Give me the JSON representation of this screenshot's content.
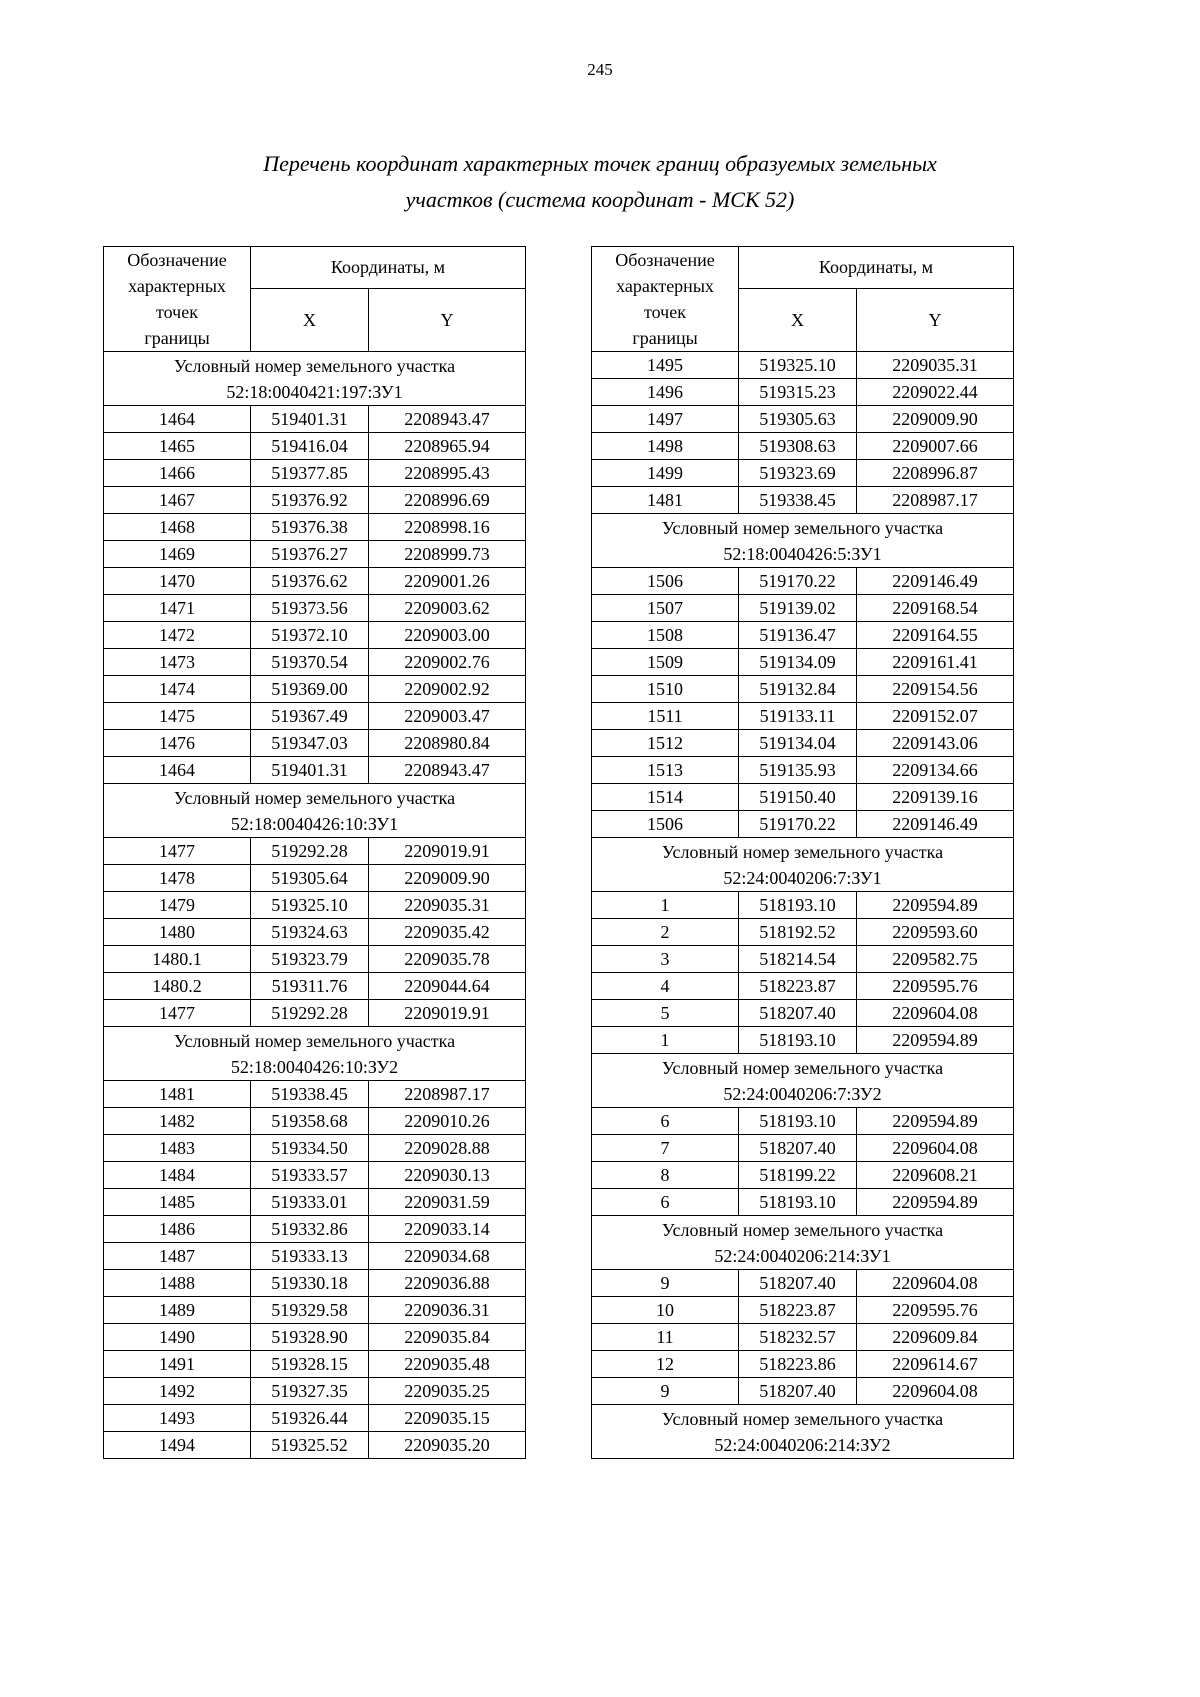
{
  "page": {
    "number": "245",
    "title_line1": "Перечень координат характерных точек границ образуемых земельных",
    "title_line2": "участков (система координат - МСК 52)"
  },
  "table_header": {
    "designation": "Обозначение\nхарактерных\nточек\nграницы",
    "coordinates": "Координаты, м",
    "x": "X",
    "y": "Y"
  },
  "tables": [
    {
      "sections": [
        {
          "header": [
            "Условный номер земельного участка",
            "52:18:0040421:197:ЗУ1"
          ],
          "rows": [
            [
              "1464",
              "519401.31",
              "2208943.47"
            ],
            [
              "1465",
              "519416.04",
              "2208965.94"
            ],
            [
              "1466",
              "519377.85",
              "2208995.43"
            ],
            [
              "1467",
              "519376.92",
              "2208996.69"
            ],
            [
              "1468",
              "519376.38",
              "2208998.16"
            ],
            [
              "1469",
              "519376.27",
              "2208999.73"
            ],
            [
              "1470",
              "519376.62",
              "2209001.26"
            ],
            [
              "1471",
              "519373.56",
              "2209003.62"
            ],
            [
              "1472",
              "519372.10",
              "2209003.00"
            ],
            [
              "1473",
              "519370.54",
              "2209002.76"
            ],
            [
              "1474",
              "519369.00",
              "2209002.92"
            ],
            [
              "1475",
              "519367.49",
              "2209003.47"
            ],
            [
              "1476",
              "519347.03",
              "2208980.84"
            ],
            [
              "1464",
              "519401.31",
              "2208943.47"
            ]
          ]
        },
        {
          "header": [
            "Условный номер земельного участка",
            "52:18:0040426:10:ЗУ1"
          ],
          "rows": [
            [
              "1477",
              "519292.28",
              "2209019.91"
            ],
            [
              "1478",
              "519305.64",
              "2209009.90"
            ],
            [
              "1479",
              "519325.10",
              "2209035.31"
            ],
            [
              "1480",
              "519324.63",
              "2209035.42"
            ],
            [
              "1480.1",
              "519323.79",
              "2209035.78"
            ],
            [
              "1480.2",
              "519311.76",
              "2209044.64"
            ],
            [
              "1477",
              "519292.28",
              "2209019.91"
            ]
          ]
        },
        {
          "header": [
            "Условный номер земельного участка",
            "52:18:0040426:10:ЗУ2"
          ],
          "rows": [
            [
              "1481",
              "519338.45",
              "2208987.17"
            ],
            [
              "1482",
              "519358.68",
              "2209010.26"
            ],
            [
              "1483",
              "519334.50",
              "2209028.88"
            ],
            [
              "1484",
              "519333.57",
              "2209030.13"
            ],
            [
              "1485",
              "519333.01",
              "2209031.59"
            ],
            [
              "1486",
              "519332.86",
              "2209033.14"
            ],
            [
              "1487",
              "519333.13",
              "2209034.68"
            ],
            [
              "1488",
              "519330.18",
              "2209036.88"
            ],
            [
              "1489",
              "519329.58",
              "2209036.31"
            ],
            [
              "1490",
              "519328.90",
              "2209035.84"
            ],
            [
              "1491",
              "519328.15",
              "2209035.48"
            ],
            [
              "1492",
              "519327.35",
              "2209035.25"
            ],
            [
              "1493",
              "519326.44",
              "2209035.15"
            ],
            [
              "1494",
              "519325.52",
              "2209035.20"
            ]
          ]
        }
      ]
    },
    {
      "sections": [
        {
          "header": null,
          "rows": [
            [
              "1495",
              "519325.10",
              "2209035.31"
            ],
            [
              "1496",
              "519315.23",
              "2209022.44"
            ],
            [
              "1497",
              "519305.63",
              "2209009.90"
            ],
            [
              "1498",
              "519308.63",
              "2209007.66"
            ],
            [
              "1499",
              "519323.69",
              "2208996.87"
            ],
            [
              "1481",
              "519338.45",
              "2208987.17"
            ]
          ]
        },
        {
          "header": [
            "Условный номер земельного участка",
            "52:18:0040426:5:ЗУ1"
          ],
          "rows": [
            [
              "1506",
              "519170.22",
              "2209146.49"
            ],
            [
              "1507",
              "519139.02",
              "2209168.54"
            ],
            [
              "1508",
              "519136.47",
              "2209164.55"
            ],
            [
              "1509",
              "519134.09",
              "2209161.41"
            ],
            [
              "1510",
              "519132.84",
              "2209154.56"
            ],
            [
              "1511",
              "519133.11",
              "2209152.07"
            ],
            [
              "1512",
              "519134.04",
              "2209143.06"
            ],
            [
              "1513",
              "519135.93",
              "2209134.66"
            ],
            [
              "1514",
              "519150.40",
              "2209139.16"
            ],
            [
              "1506",
              "519170.22",
              "2209146.49"
            ]
          ]
        },
        {
          "header": [
            "Условный номер земельного участка",
            "52:24:0040206:7:ЗУ1"
          ],
          "rows": [
            [
              "1",
              "518193.10",
              "2209594.89"
            ],
            [
              "2",
              "518192.52",
              "2209593.60"
            ],
            [
              "3",
              "518214.54",
              "2209582.75"
            ],
            [
              "4",
              "518223.87",
              "2209595.76"
            ],
            [
              "5",
              "518207.40",
              "2209604.08"
            ],
            [
              "1",
              "518193.10",
              "2209594.89"
            ]
          ]
        },
        {
          "header": [
            "Условный номер земельного участка",
            "52:24:0040206:7:ЗУ2"
          ],
          "rows": [
            [
              "6",
              "518193.10",
              "2209594.89"
            ],
            [
              "7",
              "518207.40",
              "2209604.08"
            ],
            [
              "8",
              "518199.22",
              "2209608.21"
            ],
            [
              "6",
              "518193.10",
              "2209594.89"
            ]
          ]
        },
        {
          "header": [
            "Условный номер земельного участка",
            "52:24:0040206:214:ЗУ1"
          ],
          "rows": [
            [
              "9",
              "518207.40",
              "2209604.08"
            ],
            [
              "10",
              "518223.87",
              "2209595.76"
            ],
            [
              "11",
              "518232.57",
              "2209609.84"
            ],
            [
              "12",
              "518223.86",
              "2209614.67"
            ],
            [
              "9",
              "518207.40",
              "2209604.08"
            ]
          ]
        },
        {
          "header": [
            "Условный номер земельного участка",
            "52:24:0040206:214:ЗУ2"
          ],
          "rows": []
        }
      ]
    }
  ]
}
